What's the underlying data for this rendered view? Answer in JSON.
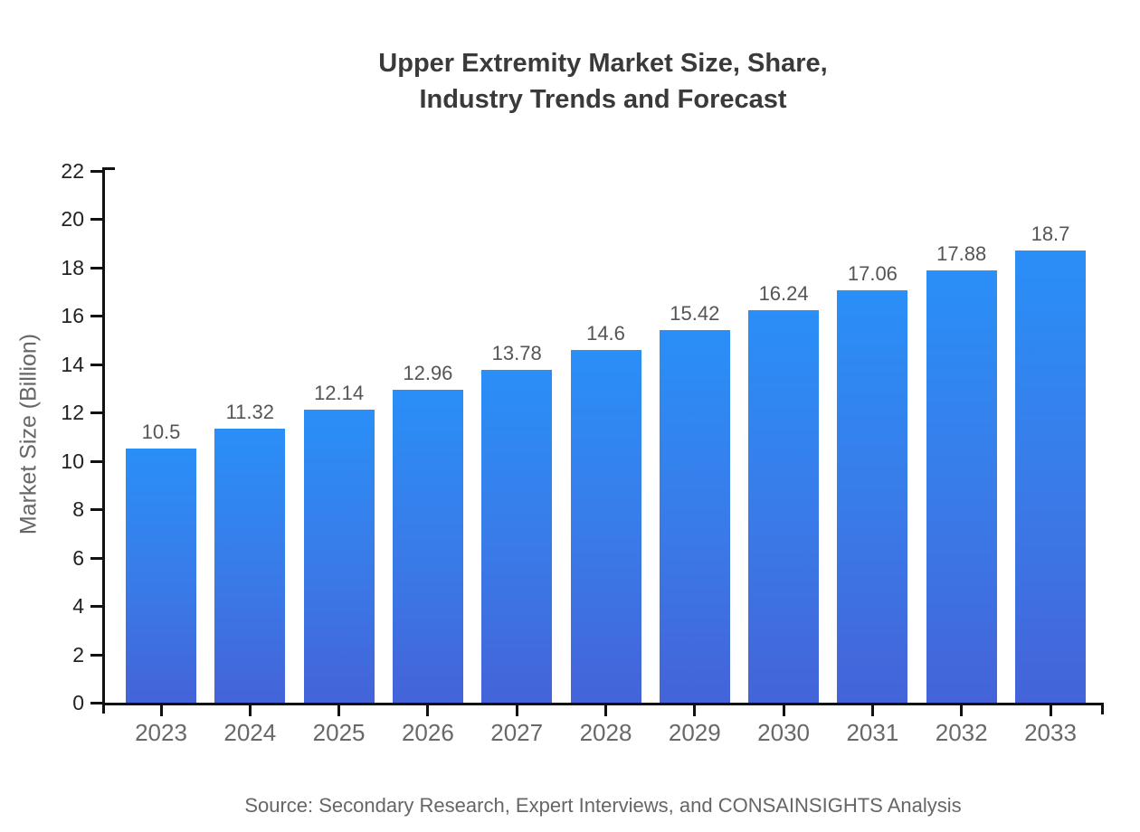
{
  "title": {
    "line1": "Upper Extremity Market Size, Share,",
    "line2": "Industry Trends and Forecast"
  },
  "source": "Source: Secondary Research, Expert Interviews, and CONSAINSIGHTS Analysis",
  "colors": {
    "bar_gradient_top": "#2a8ff7",
    "bar_gradient_bottom": "#4463d9",
    "axis": "#111111",
    "title_text": "#3a3a3a",
    "ytick_text": "#222222",
    "xtick_text": "#686868",
    "value_label_text": "#555555",
    "source_text": "#666666"
  },
  "chart_data": {
    "type": "bar",
    "title": "Upper Extremity Market Size, Share, Industry Trends and Forecast",
    "xlabel": "",
    "ylabel": "Market Size (Billion)",
    "categories": [
      "2023",
      "2024",
      "2025",
      "2026",
      "2027",
      "2028",
      "2029",
      "2030",
      "2031",
      "2032",
      "2033"
    ],
    "values": [
      10.5,
      11.32,
      12.14,
      12.96,
      13.78,
      14.6,
      15.42,
      16.24,
      17.06,
      17.88,
      18.7
    ],
    "data_labels": [
      "10.5",
      "11.32",
      "12.14",
      "12.96",
      "13.78",
      "14.6",
      "15.42",
      "16.24",
      "17.06",
      "17.88",
      "18.7"
    ],
    "ylim": [
      0,
      22
    ],
    "ytick_step": 2,
    "yticks": [
      0,
      2,
      4,
      6,
      8,
      10,
      12,
      14,
      16,
      18,
      20,
      22
    ],
    "grid": false,
    "legend": "none",
    "bar_color_style": "vertical gradient, bright azure top to royal blue bottom"
  }
}
